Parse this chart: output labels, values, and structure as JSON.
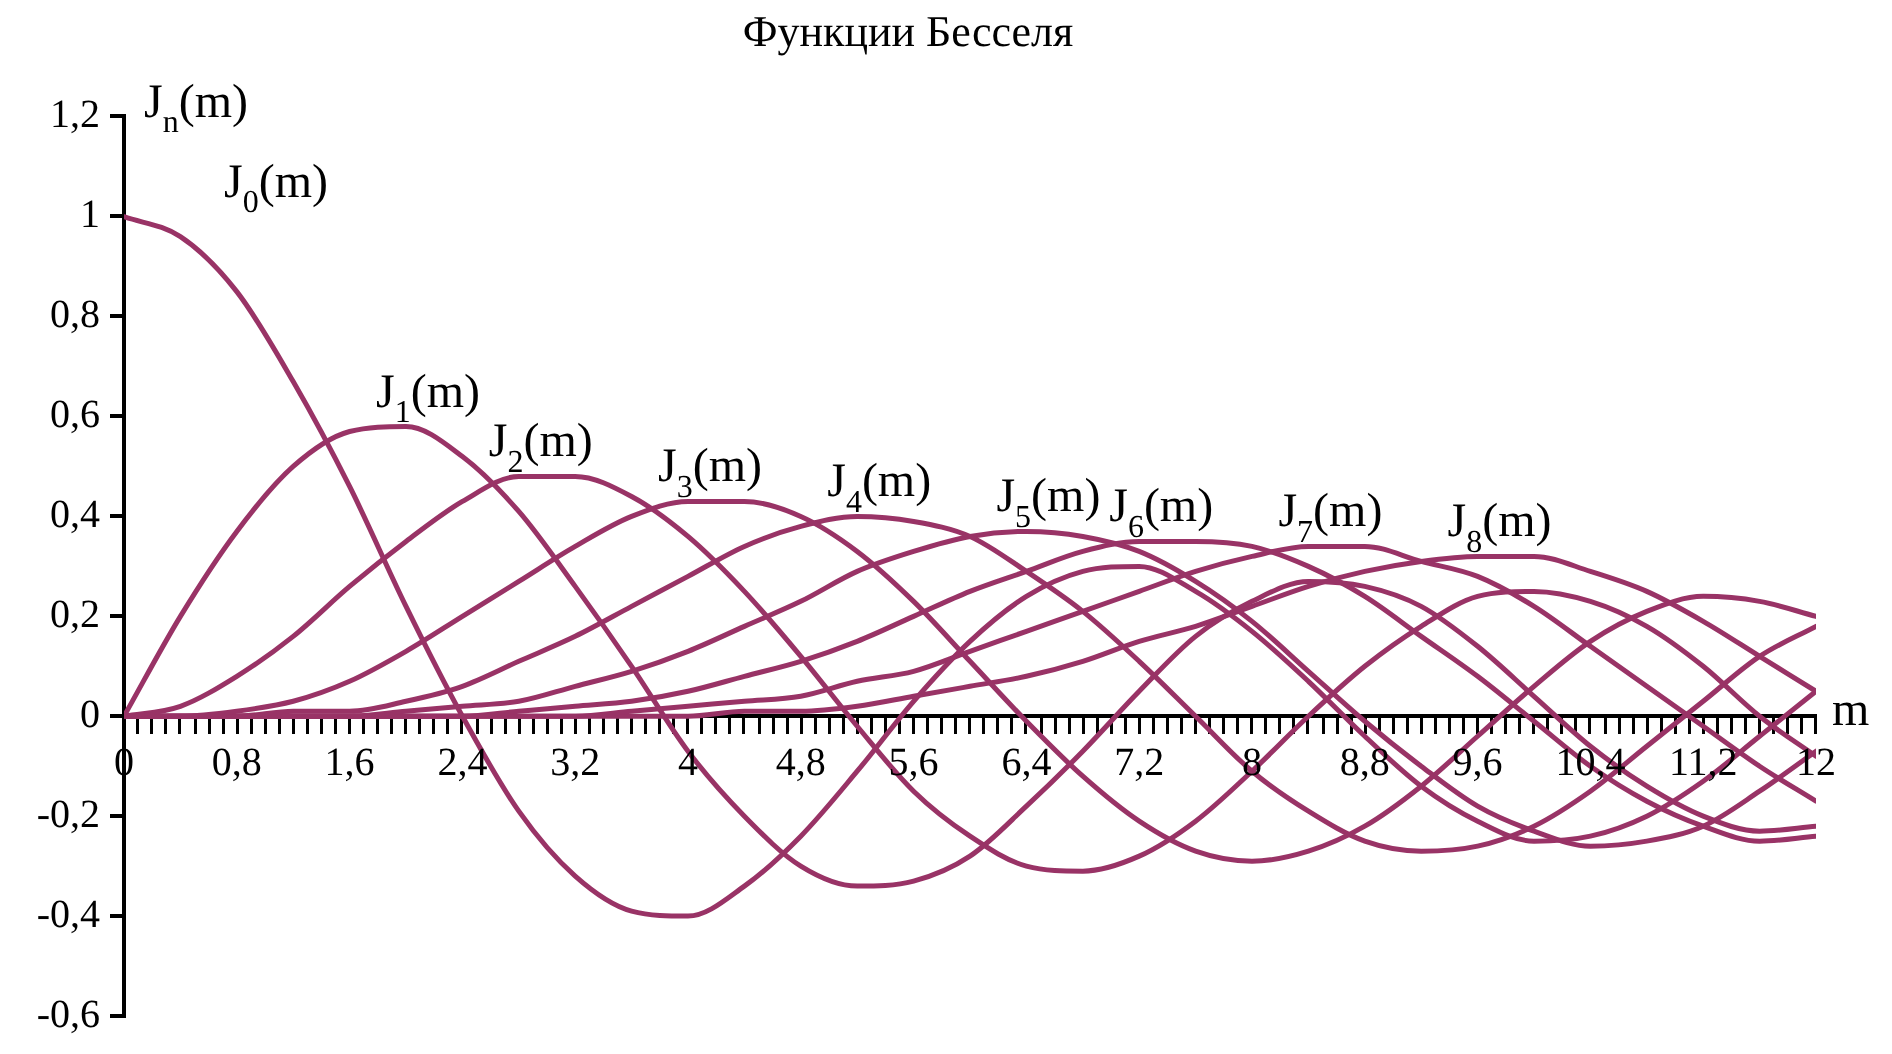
{
  "chart_data": {
    "type": "line",
    "title": "Функции Бесселя",
    "xlabel": "m",
    "ylabel": "J$_{n}$(m)",
    "x": [
      0,
      0.4,
      0.8,
      1.2,
      1.6,
      2,
      2.4,
      2.8,
      3.2,
      3.6,
      4,
      4.4,
      4.8,
      5.2,
      5.6,
      6,
      6.4,
      6.8,
      7.2,
      7.6,
      8,
      8.4,
      8.8,
      9.2,
      9.6,
      10,
      10.4,
      10.8,
      11.2,
      11.6,
      12
    ],
    "series": [
      {
        "name": "J$_{0}$(m)",
        "color": "#993366",
        "values": [
          1,
          0.96,
          0.85,
          0.67,
          0.46,
          0.22,
          0,
          -0.19,
          -0.32,
          -0.39,
          -0.4,
          -0.34,
          -0.24,
          -0.11,
          0.03,
          0.15,
          0.24,
          0.29,
          0.3,
          0.25,
          0.17,
          0.07,
          -0.04,
          -0.14,
          -0.21,
          -0.25,
          -0.24,
          -0.2,
          -0.13,
          -0.04,
          0.05
        ]
      },
      {
        "name": "J$_{1}$(m)",
        "color": "#993366",
        "values": [
          0,
          0.2,
          0.37,
          0.5,
          0.57,
          0.58,
          0.52,
          0.41,
          0.26,
          0.1,
          -0.07,
          -0.2,
          -0.3,
          -0.34,
          -0.33,
          -0.28,
          -0.18,
          -0.07,
          0.05,
          0.16,
          0.23,
          0.27,
          0.26,
          0.22,
          0.14,
          0.04,
          -0.06,
          -0.14,
          -0.2,
          -0.23,
          -0.22
        ]
      },
      {
        "name": "J$_{2}$(m)",
        "color": "#993366",
        "values": [
          0,
          0.02,
          0.08,
          0.16,
          0.26,
          0.35,
          0.43,
          0.48,
          0.48,
          0.44,
          0.36,
          0.25,
          0.12,
          -0.02,
          -0.15,
          -0.24,
          -0.3,
          -0.31,
          -0.28,
          -0.21,
          -0.11,
          0,
          0.1,
          0.18,
          0.24,
          0.25,
          0.23,
          0.18,
          0.1,
          0,
          -0.08
        ]
      },
      {
        "name": "J$_{3}$(m)",
        "color": "#993366",
        "values": [
          0,
          0,
          0.01,
          0.03,
          0.07,
          0.13,
          0.2,
          0.27,
          0.34,
          0.4,
          0.43,
          0.43,
          0.4,
          0.33,
          0.23,
          0.11,
          -0.01,
          -0.12,
          -0.21,
          -0.27,
          -0.29,
          -0.27,
          -0.22,
          -0.14,
          -0.04,
          0.06,
          0.15,
          0.21,
          0.24,
          0.23,
          0.2
        ]
      },
      {
        "name": "J$_{4}$(m)",
        "color": "#993366",
        "values": [
          0,
          0,
          0,
          0.01,
          0.01,
          0.03,
          0.06,
          0.11,
          0.16,
          0.22,
          0.28,
          0.34,
          0.38,
          0.4,
          0.39,
          0.36,
          0.29,
          0.21,
          0.11,
          0,
          -0.11,
          -0.19,
          -0.25,
          -0.27,
          -0.26,
          -0.22,
          -0.15,
          -0.06,
          0.03,
          0.12,
          0.18
        ]
      },
      {
        "name": "J$_{5}$(m)",
        "color": "#993366",
        "values": [
          0,
          0,
          0,
          0,
          0,
          0.01,
          0.02,
          0.03,
          0.06,
          0.09,
          0.13,
          0.18,
          0.23,
          0.29,
          0.33,
          0.36,
          0.37,
          0.36,
          0.33,
          0.27,
          0.19,
          0.09,
          -0.01,
          -0.1,
          -0.18,
          -0.23,
          -0.26,
          -0.25,
          -0.22,
          -0.15,
          -0.07
        ]
      },
      {
        "name": "J$_{6}$(m)",
        "color": "#993366",
        "values": [
          0,
          0,
          0,
          0,
          0,
          0,
          0,
          0.01,
          0.02,
          0.03,
          0.05,
          0.08,
          0.11,
          0.15,
          0.2,
          0.25,
          0.29,
          0.33,
          0.35,
          0.35,
          0.34,
          0.3,
          0.24,
          0.16,
          0.08,
          -0.01,
          -0.1,
          -0.17,
          -0.22,
          -0.25,
          -0.24
        ]
      },
      {
        "name": "J$_{7}$(m)",
        "color": "#993366",
        "values": [
          0,
          0,
          0,
          0,
          0,
          0,
          0,
          0,
          0,
          0.01,
          0.02,
          0.03,
          0.04,
          0.07,
          0.09,
          0.13,
          0.17,
          0.21,
          0.25,
          0.29,
          0.32,
          0.34,
          0.34,
          0.31,
          0.28,
          0.22,
          0.14,
          0.06,
          -0.02,
          -0.1,
          -0.17
        ]
      },
      {
        "name": "J$_{8}$(m)",
        "color": "#993366",
        "values": [
          0,
          0,
          0,
          0,
          0,
          0,
          0,
          0,
          0,
          0,
          0,
          0.01,
          0.01,
          0.02,
          0.04,
          0.06,
          0.08,
          0.11,
          0.15,
          0.18,
          0.22,
          0.26,
          0.29,
          0.31,
          0.32,
          0.32,
          0.29,
          0.25,
          0.19,
          0.12,
          0.05
        ]
      }
    ],
    "xlim": [
      0,
      12
    ],
    "ylim": [
      -0.6,
      1.2
    ],
    "xticks": [
      0,
      {
        "value": 0.1,
        "label": null
      },
      {
        "value": 0.2,
        "label": null
      },
      {
        "value": 0.3,
        "label": null
      },
      {
        "value": 0.4,
        "label": null
      },
      {
        "value": 0.5,
        "label": null
      },
      {
        "value": 0.6,
        "label": null
      },
      {
        "value": 0.7,
        "label": null
      },
      {
        "value": 0.8,
        "label": "0,8"
      },
      {
        "value": 0.9,
        "label": null
      },
      {
        "value": 1,
        "label": null
      },
      {
        "value": 1.1,
        "label": null
      },
      {
        "value": 1.2,
        "label": null
      },
      {
        "value": 1.3,
        "label": null
      },
      {
        "value": 1.4,
        "label": null
      },
      {
        "value": 1.5,
        "label": null
      },
      {
        "value": 1.6,
        "label": "1,6"
      },
      {
        "value": 1.7,
        "label": null
      },
      {
        "value": 1.8,
        "label": null
      },
      {
        "value": 1.9,
        "label": null
      },
      {
        "value": 2,
        "label": null
      },
      {
        "value": 2.1,
        "label": null
      },
      {
        "value": 2.2,
        "label": null
      },
      {
        "value": 2.3,
        "label": null
      },
      {
        "value": 2.4,
        "label": "2,4"
      },
      {
        "value": 2.5,
        "label": null
      },
      {
        "value": 2.6,
        "label": null
      },
      {
        "value": 2.7,
        "label": null
      },
      {
        "value": 2.8,
        "label": null
      },
      {
        "value": 2.9,
        "label": null
      },
      {
        "value": 3,
        "label": null
      },
      {
        "value": 3.1,
        "label": null
      },
      {
        "value": 3.2,
        "label": "3,2"
      },
      {
        "value": 3.3,
        "label": null
      },
      {
        "value": 3.4,
        "label": null
      },
      {
        "value": 3.5,
        "label": null
      },
      {
        "value": 3.6,
        "label": null
      },
      {
        "value": 3.7,
        "label": null
      },
      {
        "value": 3.8,
        "label": null
      },
      {
        "value": 3.9,
        "label": null
      },
      4,
      {
        "value": 4.1,
        "label": null
      },
      {
        "value": 4.2,
        "label": null
      },
      {
        "value": 4.3,
        "label": null
      },
      {
        "value": 4.4,
        "label": null
      },
      {
        "value": 4.5,
        "label": null
      },
      {
        "value": 4.6,
        "label": null
      },
      {
        "value": 4.7,
        "label": null
      },
      {
        "value": 4.8,
        "label": "4,8"
      },
      {
        "value": 4.9,
        "label": null
      },
      {
        "value": 5,
        "label": null
      },
      {
        "value": 5.1,
        "label": null
      },
      {
        "value": 5.2,
        "label": null
      },
      {
        "value": 5.3,
        "label": null
      },
      {
        "value": 5.4,
        "label": null
      },
      {
        "value": 5.5,
        "label": null
      },
      {
        "value": 5.6,
        "label": "5,6"
      },
      {
        "value": 5.7,
        "label": null
      },
      {
        "value": 5.8,
        "label": null
      },
      {
        "value": 5.9,
        "label": null
      },
      {
        "value": 6,
        "label": null
      },
      {
        "value": 6.1,
        "label": null
      },
      {
        "value": 6.2,
        "label": null
      },
      {
        "value": 6.3,
        "label": null
      },
      {
        "value": 6.4,
        "label": "6,4"
      },
      {
        "value": 6.5,
        "label": null
      },
      {
        "value": 6.6,
        "label": null
      },
      {
        "value": 6.7,
        "label": null
      },
      {
        "value": 6.8,
        "label": null
      },
      {
        "value": 6.9,
        "label": null
      },
      {
        "value": 7,
        "label": null
      },
      {
        "value": 7.1,
        "label": null
      },
      {
        "value": 7.2,
        "label": "7,2"
      },
      {
        "value": 7.3,
        "label": null
      },
      {
        "value": 7.4,
        "label": null
      },
      {
        "value": 7.5,
        "label": null
      },
      {
        "value": 7.6,
        "label": null
      },
      {
        "value": 7.7,
        "label": null
      },
      {
        "value": 7.8,
        "label": null
      },
      {
        "value": 7.9,
        "label": null
      },
      8,
      {
        "value": 8.1,
        "label": null
      },
      {
        "value": 8.2,
        "label": null
      },
      {
        "value": 8.3,
        "label": null
      },
      {
        "value": 8.4,
        "label": null
      },
      {
        "value": 8.5,
        "label": null
      },
      {
        "value": 8.6,
        "label": null
      },
      {
        "value": 8.7,
        "label": null
      },
      {
        "value": 8.8,
        "label": "8,8"
      },
      {
        "value": 8.9,
        "label": null
      },
      {
        "value": 9,
        "label": null
      },
      {
        "value": 9.1,
        "label": null
      },
      {
        "value": 9.2,
        "label": null
      },
      {
        "value": 9.3,
        "label": null
      },
      {
        "value": 9.4,
        "label": null
      },
      {
        "value": 9.5,
        "label": null
      },
      {
        "value": 9.6,
        "label": "9,6"
      },
      {
        "value": 9.7,
        "label": null
      },
      {
        "value": 9.8,
        "label": null
      },
      {
        "value": 9.9,
        "label": null
      },
      {
        "value": 10,
        "label": null
      },
      {
        "value": 10.1,
        "label": null
      },
      {
        "value": 10.2,
        "label": null
      },
      {
        "value": 10.3,
        "label": null
      },
      {
        "value": 10.4,
        "label": "10,4"
      },
      {
        "value": 10.5,
        "label": null
      },
      {
        "value": 10.6,
        "label": null
      },
      {
        "value": 10.7,
        "label": null
      },
      {
        "value": 10.8,
        "label": null
      },
      {
        "value": 10.9,
        "label": null
      },
      {
        "value": 11,
        "label": null
      },
      {
        "value": 11.1,
        "label": null
      },
      {
        "value": 11.2,
        "label": "11,2"
      },
      {
        "value": 11.3,
        "label": null
      },
      {
        "value": 11.4,
        "label": null
      },
      {
        "value": 11.5,
        "label": null
      },
      {
        "value": 11.6,
        "label": null
      },
      {
        "value": 11.7,
        "label": null
      },
      {
        "value": 11.8,
        "label": null
      },
      {
        "value": 11.9,
        "label": null
      },
      12
    ],
    "yticks": [
      {
        "value": -0.6,
        "label": "-0,6"
      },
      {
        "value": -0.4,
        "label": "-0,4"
      },
      {
        "value": -0.2,
        "label": "-0,2"
      },
      0,
      {
        "value": 0.2,
        "label": "0,2"
      },
      {
        "value": 0.4,
        "label": "0,4"
      },
      {
        "value": 0.6,
        "label": "0,6"
      },
      {
        "value": 0.8,
        "label": "0,8"
      },
      1,
      {
        "value": 1.2,
        "label": "1,2"
      }
    ],
    "grid": false,
    "legend": false
  }
}
